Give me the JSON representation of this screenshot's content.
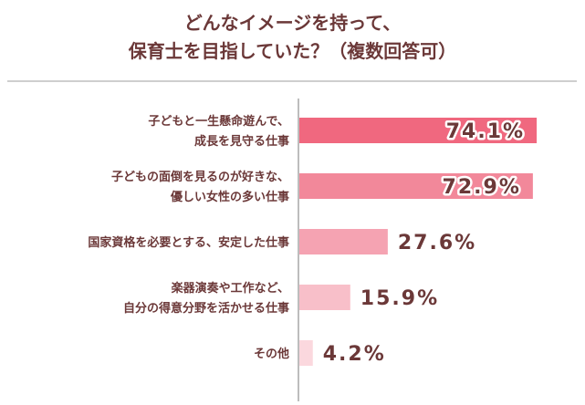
{
  "title_lines": [
    "どんなイメージを持って、",
    "保育士を目指していた？（複数回答可）"
  ],
  "colors": {
    "title": "#6b3838",
    "label": "#6b3838",
    "axis": "#bdbdbd",
    "divider": "#cfcfcf",
    "bars": [
      "#f0687f",
      "#f2889a",
      "#f5a3b2",
      "#f8bfc9",
      "#fbd8de"
    ]
  },
  "chart_data": {
    "type": "bar",
    "orientation": "horizontal",
    "unit": "%",
    "xlim": [
      0,
      100
    ],
    "grid": false,
    "categories": [
      [
        "子どもと一生懸命遊んで、",
        "成長を見守る仕事"
      ],
      [
        "子どもの面倒を見るのが好きな、",
        "優しい女性の多い仕事"
      ],
      [
        "国家資格を必要とする、安定した仕事"
      ],
      [
        "楽器演奏や工作など、",
        "自分の得意分野を活かせる仕事"
      ],
      [
        "その他"
      ]
    ],
    "values": [
      74.1,
      72.9,
      27.6,
      15.9,
      4.2
    ]
  }
}
